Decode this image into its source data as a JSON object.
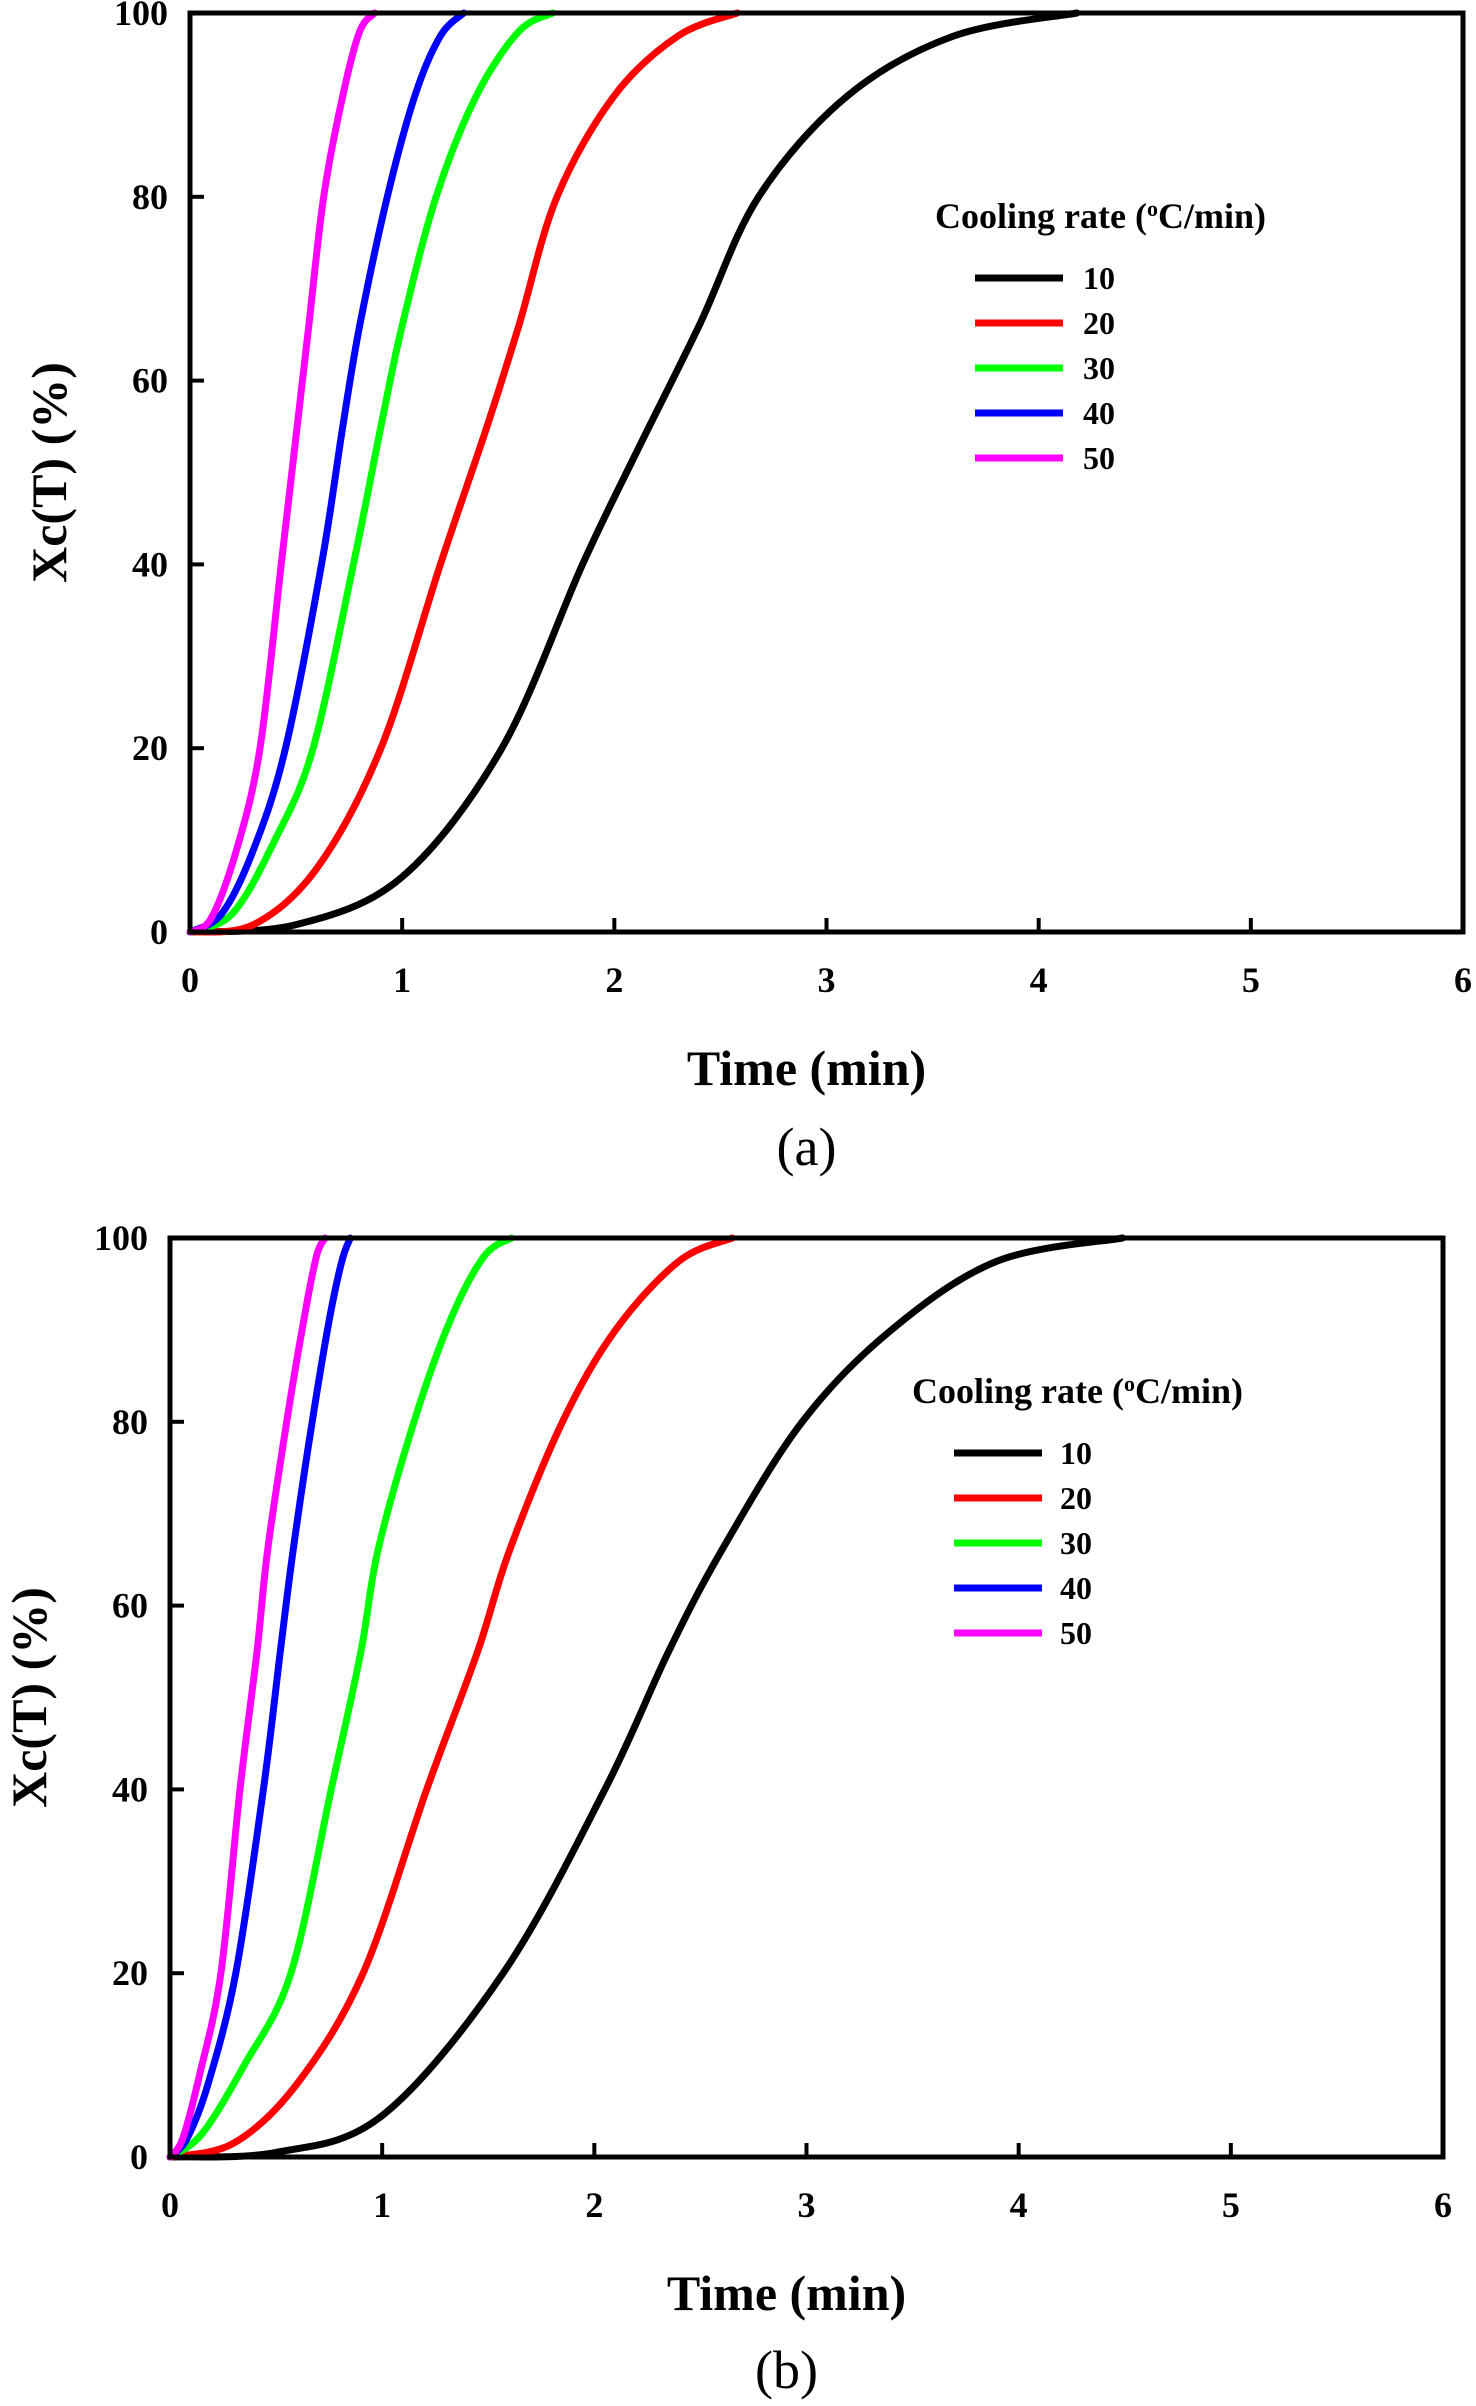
{
  "chart_data": [
    {
      "type": "line",
      "panel": "(a)",
      "caption": "(a)",
      "xlabel": "Time (min)",
      "ylabel": "Xc(T) (%)",
      "xlim": [
        0,
        6
      ],
      "ylim": [
        0,
        100
      ],
      "xticks": [
        "0",
        "1",
        "2",
        "3",
        "4",
        "5",
        "6"
      ],
      "yticks": [
        "0",
        "20",
        "40",
        "60",
        "80",
        "100"
      ],
      "grid": false,
      "legend": {
        "title": "Cooling rate (oC/min)",
        "title_parts": [
          "Cooling rate (",
          "o",
          "C/min)"
        ],
        "placement": "upper-right"
      },
      "series": [
        {
          "name": "10",
          "color": "#000000",
          "points": [
            [
              0,
              0
            ],
            [
              0.5,
              0.8
            ],
            [
              1.0,
              6
            ],
            [
              1.47,
              20
            ],
            [
              1.85,
              40
            ],
            [
              2.1,
              52
            ],
            [
              2.4,
              66
            ],
            [
              2.68,
              80
            ],
            [
              3.1,
              91
            ],
            [
              3.6,
              97.5
            ],
            [
              4.18,
              100
            ]
          ]
        },
        {
          "name": "20",
          "color": "#ff0000",
          "points": [
            [
              0,
              0
            ],
            [
              0.3,
              0.8
            ],
            [
              0.6,
              7
            ],
            [
              0.9,
              20
            ],
            [
              1.18,
              40
            ],
            [
              1.4,
              55
            ],
            [
              1.55,
              66
            ],
            [
              1.73,
              80
            ],
            [
              2.0,
              91
            ],
            [
              2.3,
              97.5
            ],
            [
              2.58,
              100
            ]
          ]
        },
        {
          "name": "30",
          "color": "#00ff00",
          "points": [
            [
              0,
              0
            ],
            [
              0.2,
              2
            ],
            [
              0.4,
              10
            ],
            [
              0.58,
              20
            ],
            [
              0.77,
              40
            ],
            [
              0.9,
              55
            ],
            [
              1.0,
              66
            ],
            [
              1.16,
              80
            ],
            [
              1.35,
              91
            ],
            [
              1.55,
              98
            ],
            [
              1.71,
              100
            ]
          ]
        },
        {
          "name": "40",
          "color": "#0000ff",
          "points": [
            [
              0,
              0
            ],
            [
              0.15,
              2
            ],
            [
              0.3,
              9
            ],
            [
              0.45,
              20
            ],
            [
              0.62,
              40
            ],
            [
              0.72,
              55
            ],
            [
              0.8,
              66
            ],
            [
              0.93,
              80
            ],
            [
              1.06,
              91
            ],
            [
              1.18,
              97.5
            ],
            [
              1.29,
              100
            ]
          ]
        },
        {
          "name": "50",
          "color": "#ff00ff",
          "points": [
            [
              0,
              0
            ],
            [
              0.1,
              1.5
            ],
            [
              0.22,
              9
            ],
            [
              0.33,
              20
            ],
            [
              0.43,
              40
            ],
            [
              0.5,
              54
            ],
            [
              0.56,
              66
            ],
            [
              0.63,
              80
            ],
            [
              0.72,
              91
            ],
            [
              0.8,
              98
            ],
            [
              0.87,
              100
            ]
          ]
        }
      ]
    },
    {
      "type": "line",
      "panel": "(b)",
      "caption": "(b)",
      "xlabel": "Time (min)",
      "ylabel": "Xc(T) (%)",
      "xlim": [
        0,
        6
      ],
      "ylim": [
        0,
        100
      ],
      "xticks": [
        "0",
        "1",
        "2",
        "3",
        "4",
        "5",
        "6"
      ],
      "yticks": [
        "0",
        "20",
        "40",
        "60",
        "80",
        "100"
      ],
      "grid": false,
      "legend": {
        "title": "Cooling rate (oC/min)",
        "title_parts": [
          "Cooling rate (",
          "o",
          "C/min)"
        ],
        "placement": "upper-right"
      },
      "series": [
        {
          "name": "10",
          "color": "#000000",
          "points": [
            [
              0,
              0
            ],
            [
              0.5,
              0.5
            ],
            [
              1.0,
              4.5
            ],
            [
              1.57,
              20
            ],
            [
              2.05,
              40
            ],
            [
              2.35,
              55
            ],
            [
              2.6,
              66
            ],
            [
              2.98,
              80
            ],
            [
              3.4,
              90
            ],
            [
              3.9,
              97.5
            ],
            [
              4.49,
              100
            ]
          ]
        },
        {
          "name": "20",
          "color": "#ff0000",
          "points": [
            [
              0,
              0
            ],
            [
              0.3,
              1.5
            ],
            [
              0.6,
              8
            ],
            [
              0.91,
              20
            ],
            [
              1.21,
              40
            ],
            [
              1.45,
              55
            ],
            [
              1.6,
              66
            ],
            [
              1.85,
              80
            ],
            [
              2.1,
              90
            ],
            [
              2.4,
              97.5
            ],
            [
              2.65,
              100
            ]
          ]
        },
        {
          "name": "30",
          "color": "#00ff00",
          "points": [
            [
              0,
              0
            ],
            [
              0.15,
              2.5
            ],
            [
              0.35,
              10
            ],
            [
              0.57,
              20
            ],
            [
              0.76,
              40
            ],
            [
              0.9,
              55
            ],
            [
              0.98,
              66
            ],
            [
              1.15,
              80
            ],
            [
              1.32,
              91
            ],
            [
              1.48,
              98
            ],
            [
              1.61,
              100
            ]
          ]
        },
        {
          "name": "40",
          "color": "#0000ff",
          "points": [
            [
              0,
              0
            ],
            [
              0.08,
              2
            ],
            [
              0.18,
              8
            ],
            [
              0.31,
              20
            ],
            [
              0.44,
              40
            ],
            [
              0.52,
              55
            ],
            [
              0.58,
              66
            ],
            [
              0.67,
              80
            ],
            [
              0.75,
              91
            ],
            [
              0.81,
              97.5
            ],
            [
              0.85,
              100
            ]
          ]
        },
        {
          "name": "50",
          "color": "#ff00ff",
          "points": [
            [
              0,
              0
            ],
            [
              0.06,
              2
            ],
            [
              0.14,
              9
            ],
            [
              0.24,
              20
            ],
            [
              0.33,
              40
            ],
            [
              0.41,
              55
            ],
            [
              0.46,
              66
            ],
            [
              0.55,
              80
            ],
            [
              0.63,
              91
            ],
            [
              0.69,
              98
            ],
            [
              0.73,
              100
            ]
          ]
        }
      ]
    }
  ]
}
